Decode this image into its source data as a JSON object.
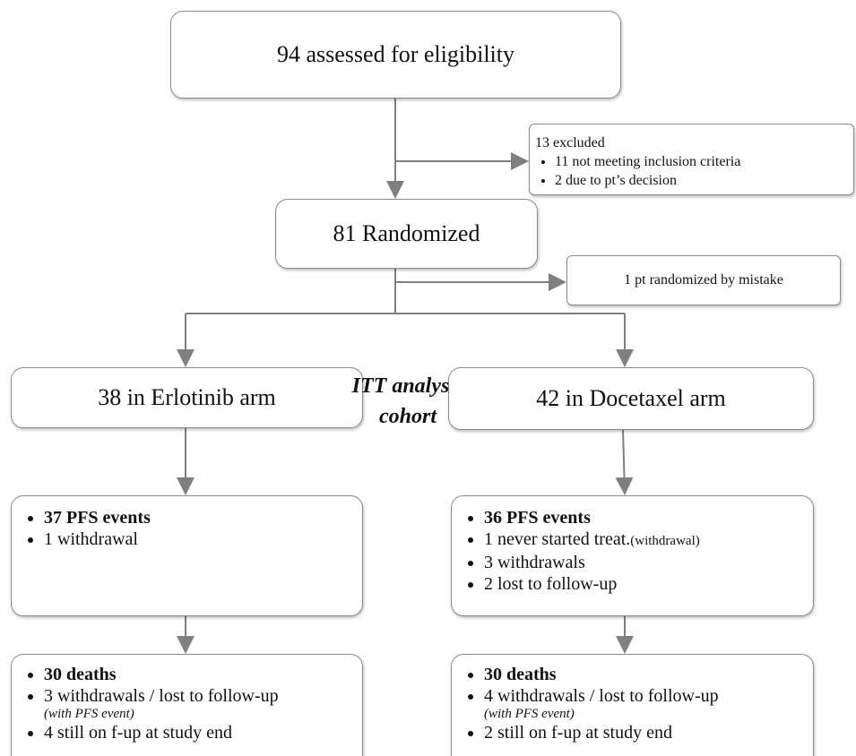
{
  "nodes": {
    "assessed": {
      "label": "94 assessed for eligibility"
    },
    "excluded": {
      "label": "13 excluded",
      "items": [
        "11 not meeting inclusion criteria",
        "2 due to pt’s decision"
      ]
    },
    "randomized": {
      "label": "81 Randomized"
    },
    "mistake": {
      "label": "1 pt randomized by mistake"
    },
    "erlotinib": {
      "label": "38 in Erlotinib arm"
    },
    "cohort": {
      "label": "ITT analysis cohort"
    },
    "docetaxel": {
      "label": "42 in Docetaxel arm"
    }
  },
  "pfs": [
    {
      "items": [
        {
          "text": "37 PFS events"
        },
        {
          "text": "1 withdrawal"
        }
      ]
    },
    {
      "items": [
        {
          "text": "36 PFS events"
        },
        {
          "text": "1 never started treat.",
          "note": "(withdrawal)"
        },
        {
          "text": "3 withdrawals"
        },
        {
          "text": "2 lost to follow-up"
        }
      ]
    }
  ],
  "deaths": [
    {
      "items": [
        {
          "text": "30 deaths"
        },
        {
          "text": "3 withdrawals / lost to follow-up",
          "note": "(with PFS event)"
        },
        {
          "text": "4 still on f-up at study end"
        }
      ]
    },
    {
      "items": [
        {
          "text": "30 deaths"
        },
        {
          "text": "4 withdrawals / lost to follow-up",
          "note": "(with PFS event)"
        },
        {
          "text": "2 still on f-up at study end"
        }
      ]
    }
  ]
}
